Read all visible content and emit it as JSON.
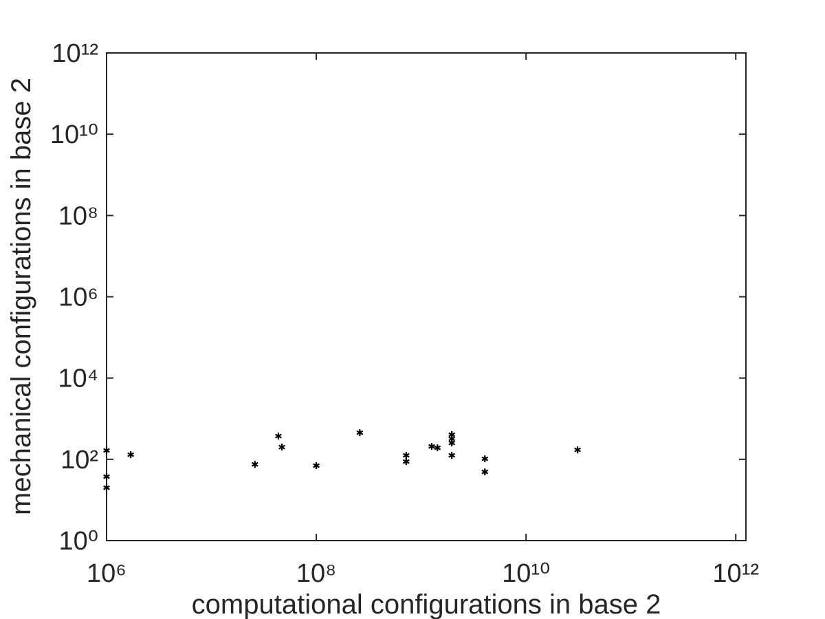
{
  "chart_data": {
    "type": "scatter",
    "x_label": "computational configurations in base 2",
    "y_label": "mechanical configurations in base 2",
    "xscale": "log",
    "yscale": "log",
    "xlim": [
      1000000,
      1250000000000
    ],
    "ylim": [
      1,
      1000000000000
    ],
    "xticks": [
      {
        "value": 1000000,
        "label": "10⁶"
      },
      {
        "value": 100000000,
        "label": "10⁸"
      },
      {
        "value": 10000000000,
        "label": "10¹⁰"
      },
      {
        "value": 1000000000000,
        "label": "10¹²"
      }
    ],
    "yticks": [
      {
        "value": 1,
        "label": "10⁰"
      },
      {
        "value": 100,
        "label": "10²"
      },
      {
        "value": 10000,
        "label": "10⁴"
      },
      {
        "value": 1000000,
        "label": "10⁶"
      },
      {
        "value": 100000000,
        "label": "10⁸"
      },
      {
        "value": 10000000000,
        "label": "10¹⁰"
      },
      {
        "value": 1000000000000,
        "label": "10¹²"
      }
    ],
    "grid": false,
    "marker": "*",
    "color": "#000000",
    "x": [
      1000000,
      1000000,
      1000000,
      1700000,
      26000000,
      43500000,
      47000000,
      100000000,
      260000000,
      720000000,
      720000000,
      1260000000,
      1430000000,
      1960000000,
      1960000000,
      1960000000,
      1960000000,
      4050000000,
      4050000000,
      31000000000
    ],
    "values": [
      165,
      37.5,
      20,
      130,
      75,
      373,
      200,
      70,
      453,
      125,
      88,
      208,
      192,
      404,
      319,
      253,
      125,
      103,
      49,
      171
    ]
  }
}
